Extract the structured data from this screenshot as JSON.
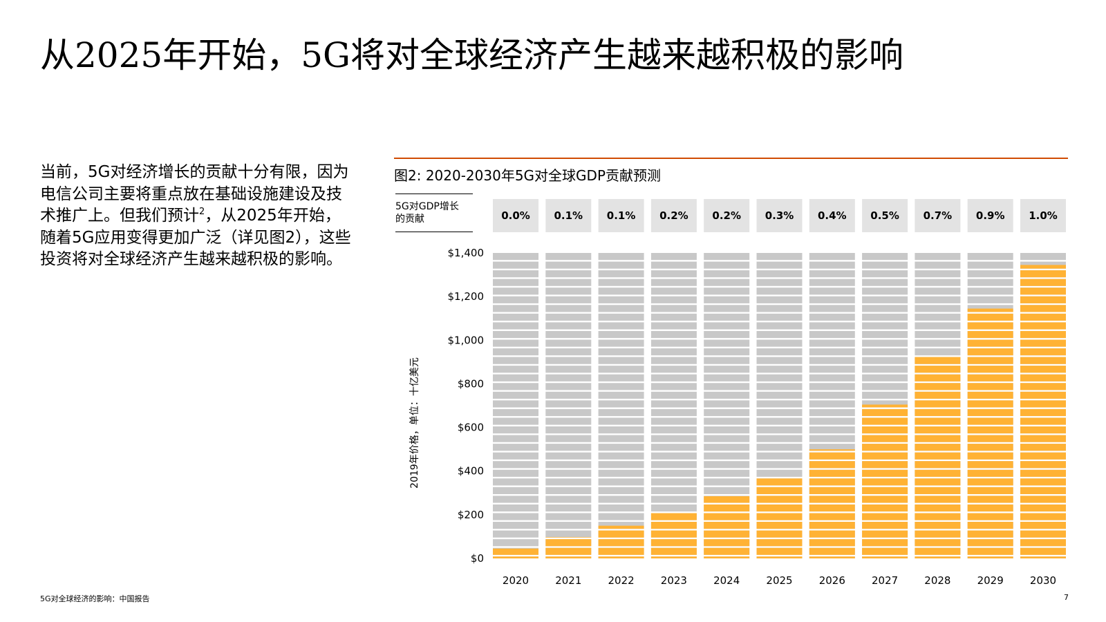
{
  "page": {
    "title": "从2025年开始，5G将对全球经济产生越来越积极的影响",
    "body_before_sup": "当前，5G对经济增长的贡献十分有限，因为电信公司主要将重点放在基础设施建设及技术推广上。但我们预计",
    "body_sup": "2",
    "body_after_sup": "，从2025年开始，随着5G应用变得更加广泛（详见图2），这些投资将对全球经济产生越来越积极的影响。",
    "footer_left": "5G对全球经济的影响：中国报告",
    "page_number": "7"
  },
  "colors": {
    "accent_rule": "#d04a02",
    "bar_fill": "#ffb234",
    "bar_background": "#c8c8c8",
    "pct_box": "#e3e3e3"
  },
  "chart_data": {
    "type": "bar",
    "title": "图2: 2020-2030年5G对全球GDP贡献预测",
    "row_label_line1": "5G对GDP增长",
    "row_label_line2": "的贡献",
    "ylabel": "2019年价格，单位：十亿美元",
    "ylim": [
      0,
      1400
    ],
    "yticks": [
      "$0",
      "$200",
      "$400",
      "$600",
      "$800",
      "$1,000",
      "$1,200",
      "$1,400"
    ],
    "ytick_values": [
      0,
      200,
      400,
      600,
      800,
      1000,
      1200,
      1400
    ],
    "categories": [
      "2020",
      "2021",
      "2022",
      "2023",
      "2024",
      "2025",
      "2026",
      "2027",
      "2028",
      "2029",
      "2030"
    ],
    "values": [
      45,
      98,
      150,
      210,
      285,
      370,
      500,
      705,
      930,
      1145,
      1345
    ],
    "gdp_contribution_pct": [
      "0.0%",
      "0.1%",
      "0.1%",
      "0.2%",
      "0.2%",
      "0.3%",
      "0.4%",
      "0.5%",
      "0.7%",
      "0.9%",
      "1.0%"
    ],
    "grid": false,
    "legend": "none"
  }
}
